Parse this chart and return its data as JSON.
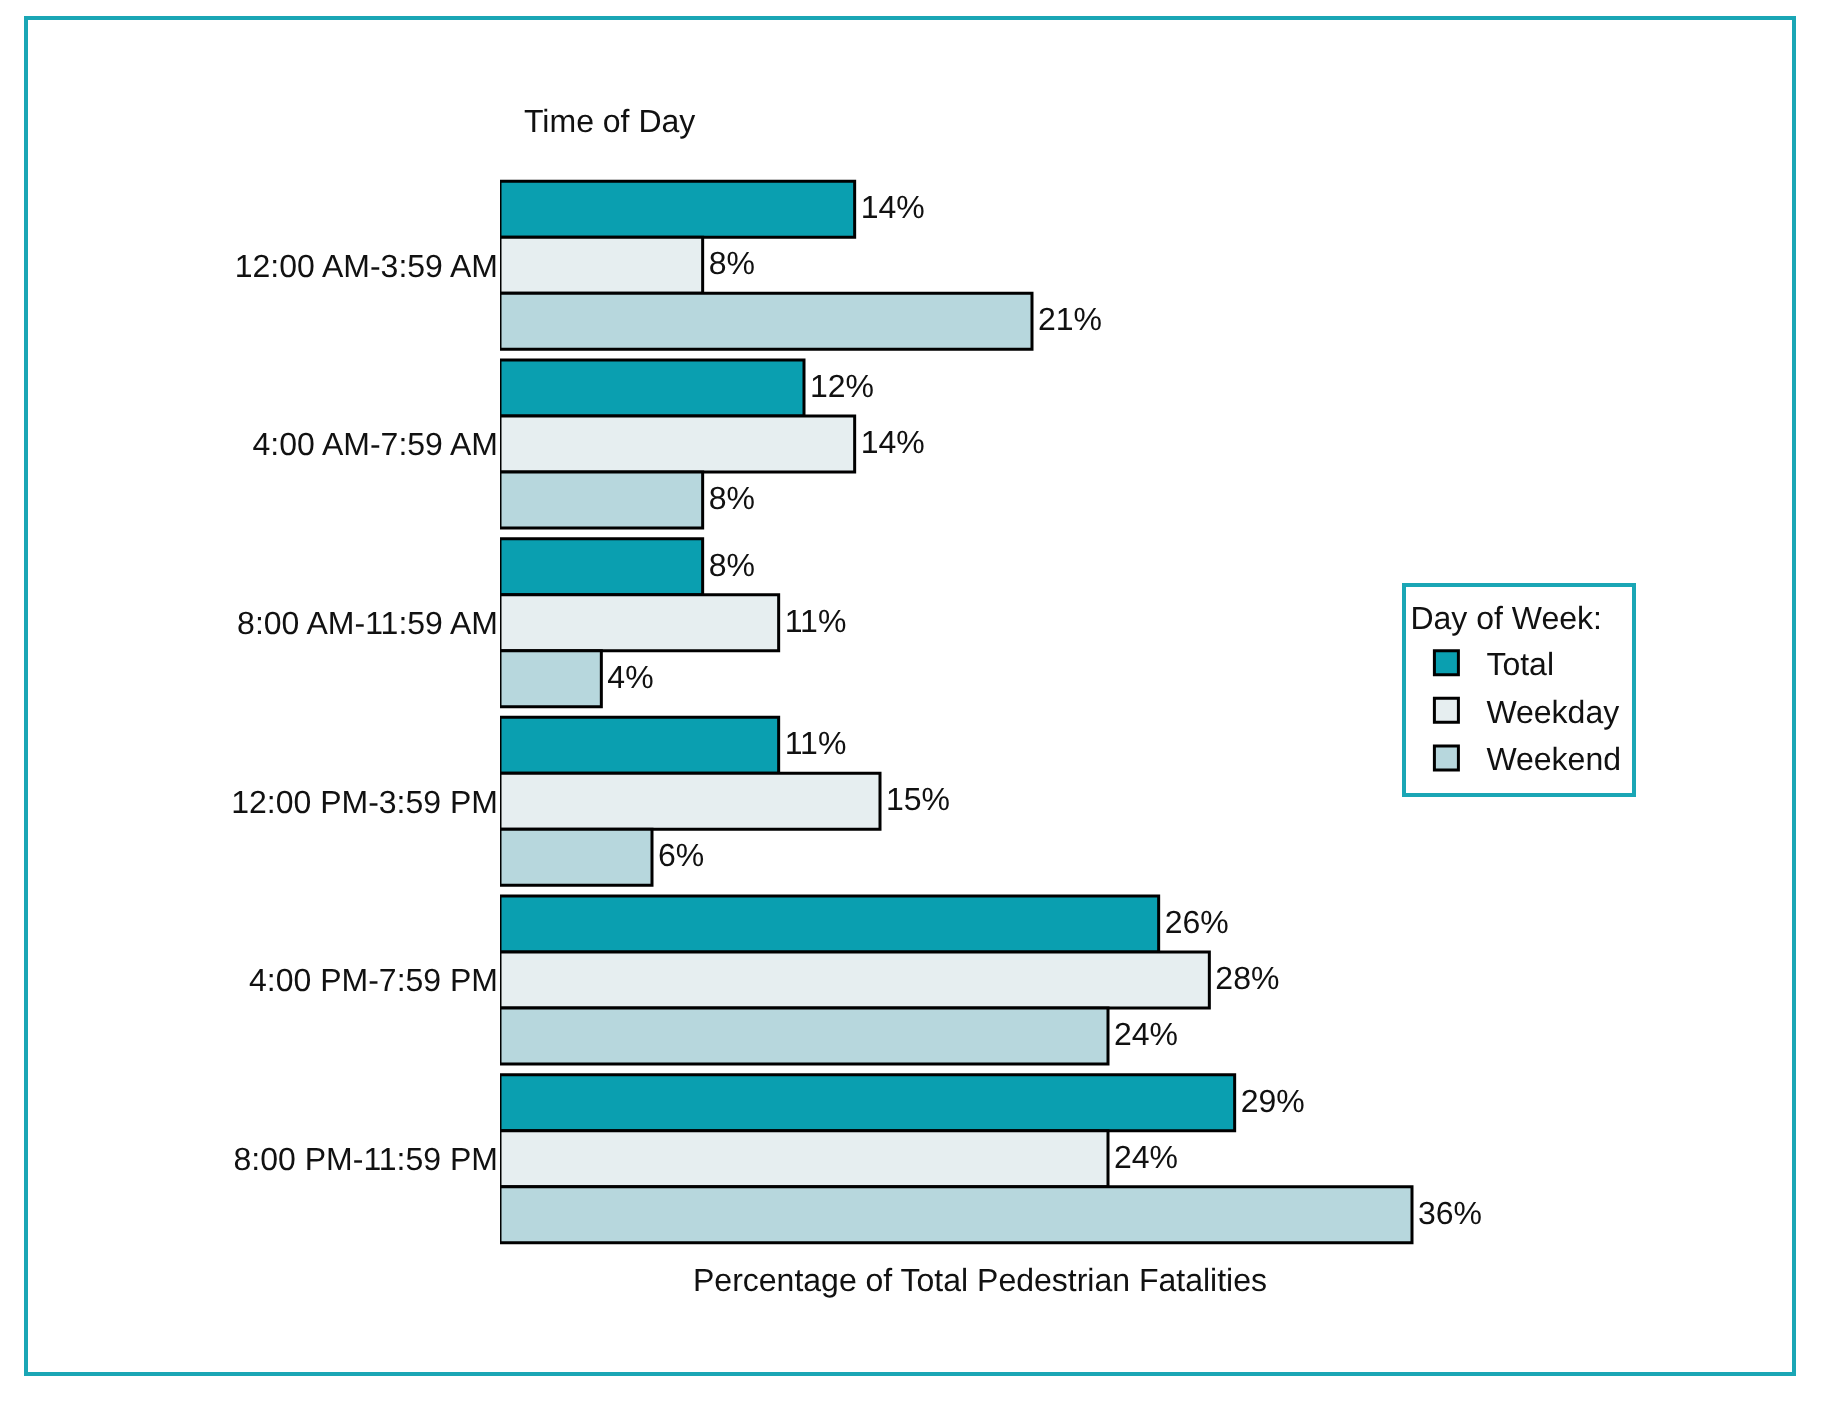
{
  "chart_data": {
    "type": "bar",
    "orientation": "horizontal",
    "ylabel": "Time of Day",
    "xlabel": "Percentage of Total Pedestrian Fatalities",
    "legend_title": "Day of Week:",
    "legend": "right",
    "tick_labels": "y",
    "categories": [
      "12:00 AM-3:59 AM",
      "4:00 AM-7:59 AM",
      "8:00 AM-11:59 AM",
      "12:00 PM-3:59 PM",
      "4:00 PM-7:59 PM",
      "8:00 PM-11:59 PM"
    ],
    "series": [
      {
        "name": "Total",
        "color": "#0a9fb0",
        "values": [
          14,
          12,
          8,
          11,
          26,
          29
        ],
        "value_labels": [
          "14%",
          "12%",
          "8%",
          "11%",
          "26%",
          "29%"
        ]
      },
      {
        "name": "Weekday",
        "color": "#e6eef0",
        "values": [
          8,
          14,
          11,
          15,
          28,
          24
        ],
        "value_labels": [
          "8%",
          "14%",
          "11%",
          "15%",
          "28%",
          "24%"
        ]
      },
      {
        "name": "Weekend",
        "color": "#b7d7dd",
        "values": [
          21,
          8,
          4,
          6,
          24,
          36
        ],
        "value_labels": [
          "21%",
          "8%",
          "4%",
          "6%",
          "24%",
          "36%"
        ]
      }
    ]
  }
}
